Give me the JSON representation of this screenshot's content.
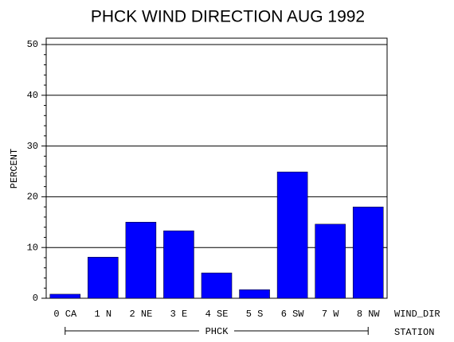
{
  "chart_data": {
    "type": "bar",
    "title": "PHCK WIND DIRECTION AUG 1992",
    "y_label": "PERCENT",
    "x_label": "WIND_DIR",
    "group_label": "PHCK",
    "group_axis_label": "STATION",
    "categories": [
      "0 CA",
      "1 N",
      "2 NE",
      "3 E",
      "4 SE",
      "5 S",
      "6 SW",
      "7 W",
      "8 NW"
    ],
    "values": [
      0.8,
      8.1,
      15.0,
      13.3,
      5.0,
      1.7,
      24.9,
      14.6,
      18.0
    ],
    "color": "#0000ff",
    "ylim": [
      0,
      51.25
    ],
    "yticks": [
      0,
      10,
      20,
      30,
      40,
      50
    ],
    "grid": true
  }
}
